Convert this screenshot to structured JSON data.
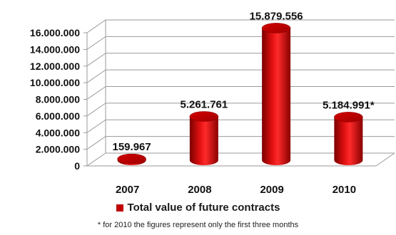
{
  "chart_data": {
    "type": "bar",
    "style": "3d-cylinder",
    "categories": [
      "2007",
      "2008",
      "2009",
      "2010"
    ],
    "series": [
      {
        "name": "Total value of future contracts",
        "values": [
          159967,
          5261761,
          15879556,
          5184991
        ],
        "color": "#c00000"
      }
    ],
    "data_labels": [
      "159.967",
      "5.261.761",
      "15.879.556",
      "5.184.991*"
    ],
    "y_ticks": [
      0,
      2000000,
      4000000,
      6000000,
      8000000,
      10000000,
      12000000,
      14000000,
      16000000
    ],
    "y_tick_labels": [
      "0",
      "2.000.000",
      "4.000.000",
      "6.000.000",
      "8.000.000",
      "10.000.000",
      "12.000.000",
      "14.000.000",
      "16.000.000"
    ],
    "ylim": [
      0,
      16000000
    ],
    "grid": true,
    "legend_position": "bottom",
    "title": "",
    "xlabel": "",
    "ylabel": ""
  },
  "legend": {
    "label": "Total value of future contracts"
  },
  "footnote": "* for 2010 the figures represent only the first three months"
}
